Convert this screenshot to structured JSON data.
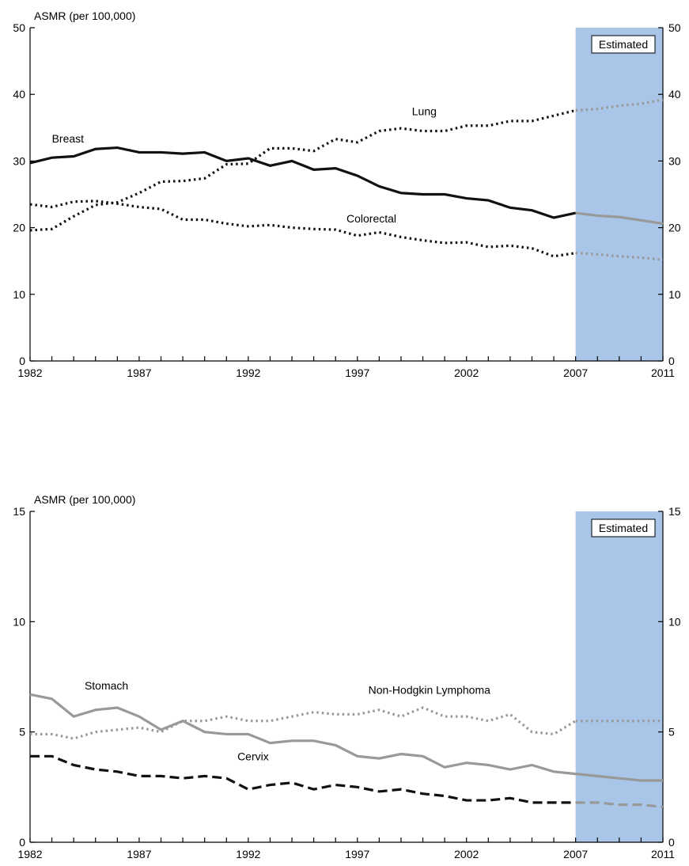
{
  "colors": {
    "estimated_band": "#a9c6e8",
    "black": "#111111",
    "gray": "#999999"
  },
  "chart_data": [
    {
      "type": "line",
      "ylabel": "ASMR (per 100,000)",
      "xlim": [
        1982,
        2011
      ],
      "ylim": [
        0,
        50
      ],
      "yticks": [
        0,
        10,
        20,
        30,
        40,
        50
      ],
      "xticks": [
        1982,
        1987,
        1992,
        1997,
        2002,
        2007,
        2011
      ],
      "estimated_label": "Estimated",
      "estimated_range": [
        2007,
        2011
      ],
      "x": [
        1982,
        1983,
        1984,
        1985,
        1986,
        1987,
        1988,
        1989,
        1990,
        1991,
        1992,
        1993,
        1994,
        1995,
        1996,
        1997,
        1998,
        1999,
        2000,
        2001,
        2002,
        2003,
        2004,
        2005,
        2006,
        2007,
        2008,
        2009,
        2010,
        2011
      ],
      "series": [
        {
          "name": "Breast",
          "style": "solid",
          "values": [
            29.7,
            30.5,
            30.7,
            31.8,
            32.0,
            31.3,
            31.3,
            31.1,
            31.3,
            30.0,
            30.4,
            29.3,
            30.0,
            28.7,
            28.9,
            27.8,
            26.2,
            25.2,
            25.0,
            25.0,
            24.4,
            24.1,
            23.0,
            22.6,
            21.5,
            22.2,
            21.8,
            21.6,
            21.1,
            20.6
          ],
          "label_at": [
            1983,
            33.4
          ]
        },
        {
          "name": "Lung",
          "style": "dotted",
          "values": [
            19.6,
            19.8,
            21.7,
            23.4,
            23.8,
            25.2,
            26.9,
            27.0,
            27.4,
            29.5,
            29.6,
            31.9,
            31.9,
            31.5,
            33.3,
            32.8,
            34.5,
            34.9,
            34.5,
            34.5,
            35.3,
            35.3,
            36.0,
            36.0,
            36.8,
            37.6,
            37.8,
            38.3,
            38.6,
            39.2
          ],
          "label_at": [
            1999.5,
            37.5
          ]
        },
        {
          "name": "Colorectal",
          "style": "dotted",
          "values": [
            23.5,
            23.1,
            23.9,
            24.0,
            23.6,
            23.1,
            22.8,
            21.2,
            21.2,
            20.6,
            20.2,
            20.4,
            20.0,
            19.8,
            19.7,
            18.8,
            19.3,
            18.6,
            18.1,
            17.7,
            17.8,
            17.1,
            17.3,
            16.9,
            15.7,
            16.2,
            16.0,
            15.7,
            15.5,
            15.2
          ],
          "label_at": [
            1996.5,
            21.4
          ]
        }
      ]
    },
    {
      "type": "line",
      "ylabel": "ASMR (per 100,000)",
      "xlim": [
        1982,
        2011
      ],
      "ylim": [
        0,
        15
      ],
      "yticks": [
        0,
        5,
        10,
        15
      ],
      "xticks": [
        1982,
        1987,
        1992,
        1997,
        2002,
        2007,
        2011
      ],
      "estimated_label": "Estimated",
      "estimated_range": [
        2007,
        2011
      ],
      "x": [
        1982,
        1983,
        1984,
        1985,
        1986,
        1987,
        1988,
        1989,
        1990,
        1991,
        1992,
        1993,
        1994,
        1995,
        1996,
        1997,
        1998,
        1999,
        2000,
        2001,
        2002,
        2003,
        2004,
        2005,
        2006,
        2007,
        2008,
        2009,
        2010,
        2011
      ],
      "series": [
        {
          "name": "Stomach",
          "style": "solid-gray",
          "values": [
            6.7,
            6.5,
            5.7,
            6.0,
            6.1,
            5.7,
            5.1,
            5.5,
            5.0,
            4.9,
            4.9,
            4.5,
            4.6,
            4.6,
            4.4,
            3.9,
            3.8,
            4.0,
            3.9,
            3.4,
            3.6,
            3.5,
            3.3,
            3.5,
            3.2,
            3.1,
            3.0,
            2.9,
            2.8,
            2.8
          ],
          "label_at": [
            1984.5,
            7.1
          ]
        },
        {
          "name": "Non-Hodgkin Lymphoma",
          "style": "dotted-gray",
          "values": [
            4.9,
            4.9,
            4.7,
            5.0,
            5.1,
            5.2,
            5.0,
            5.5,
            5.5,
            5.7,
            5.5,
            5.5,
            5.7,
            5.9,
            5.8,
            5.8,
            6.0,
            5.7,
            6.1,
            5.7,
            5.7,
            5.5,
            5.8,
            5.0,
            4.9,
            5.5,
            5.5,
            5.5,
            5.5,
            5.5
          ],
          "label_at": [
            1997.5,
            6.9
          ]
        },
        {
          "name": "Cervix",
          "style": "dashed",
          "values": [
            3.9,
            3.9,
            3.5,
            3.3,
            3.2,
            3.0,
            3.0,
            2.9,
            3.0,
            2.9,
            2.4,
            2.6,
            2.7,
            2.4,
            2.6,
            2.5,
            2.3,
            2.4,
            2.2,
            2.1,
            1.9,
            1.9,
            2.0,
            1.8,
            1.8,
            1.8,
            1.8,
            1.7,
            1.7,
            1.6
          ],
          "label_at": [
            1991.5,
            3.9
          ]
        }
      ]
    }
  ]
}
